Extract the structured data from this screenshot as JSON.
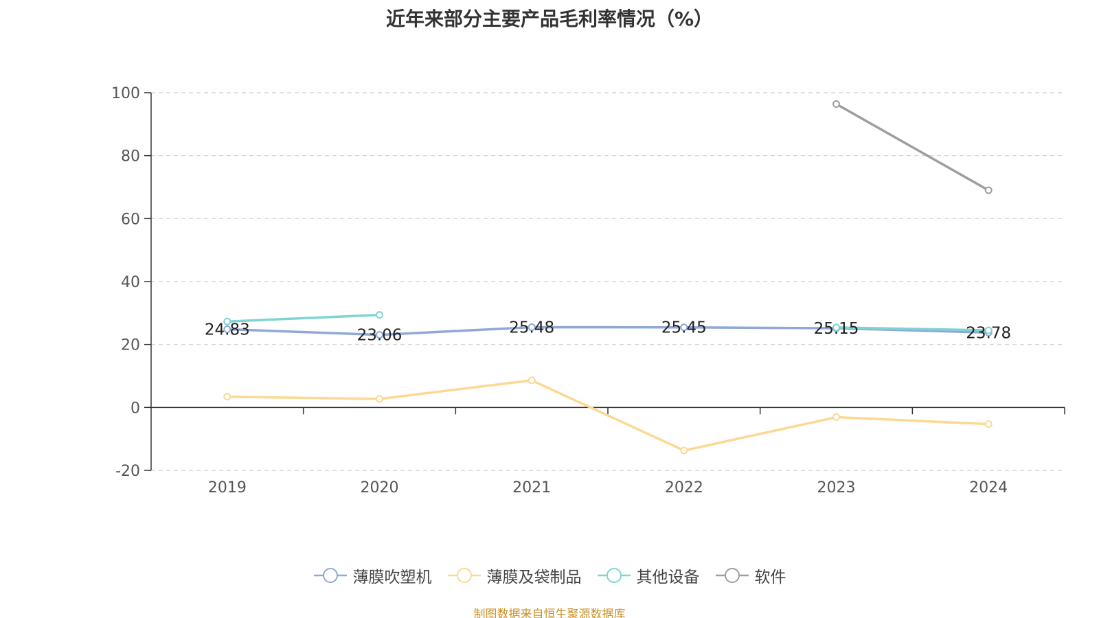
{
  "chart_data": {
    "type": "line",
    "title": "近年来部分主要产品毛利率情况（%）",
    "categories": [
      "2019",
      "2020",
      "2021",
      "2022",
      "2023",
      "2024"
    ],
    "ylim": [
      -20,
      100
    ],
    "yticks": [
      -20,
      0,
      20,
      40,
      60,
      80,
      100
    ],
    "grid": true,
    "legend_position": "bottom",
    "series": [
      {
        "name": "薄膜吹塑机",
        "color": "#8fa8d8",
        "values": [
          24.83,
          23.06,
          25.48,
          25.45,
          25.15,
          23.78
        ],
        "labels": [
          "24.83",
          "23.06",
          "25.48",
          "25.45",
          "25.15",
          "23.78"
        ]
      },
      {
        "name": "薄膜及袋制品",
        "color": "#fcd893",
        "values": [
          3.4,
          2.7,
          8.6,
          -13.7,
          -3.1,
          -5.3
        ]
      },
      {
        "name": "其他设备",
        "color": "#7fd3d3",
        "values": [
          27.3,
          29.4,
          null,
          null,
          25.4,
          24.5
        ]
      },
      {
        "name": "软件",
        "color": "#9e9e9e",
        "values": [
          null,
          null,
          null,
          null,
          96.4,
          69.0
        ]
      }
    ]
  },
  "footer": {
    "source": "制图数据来自恒生聚源数据库"
  }
}
